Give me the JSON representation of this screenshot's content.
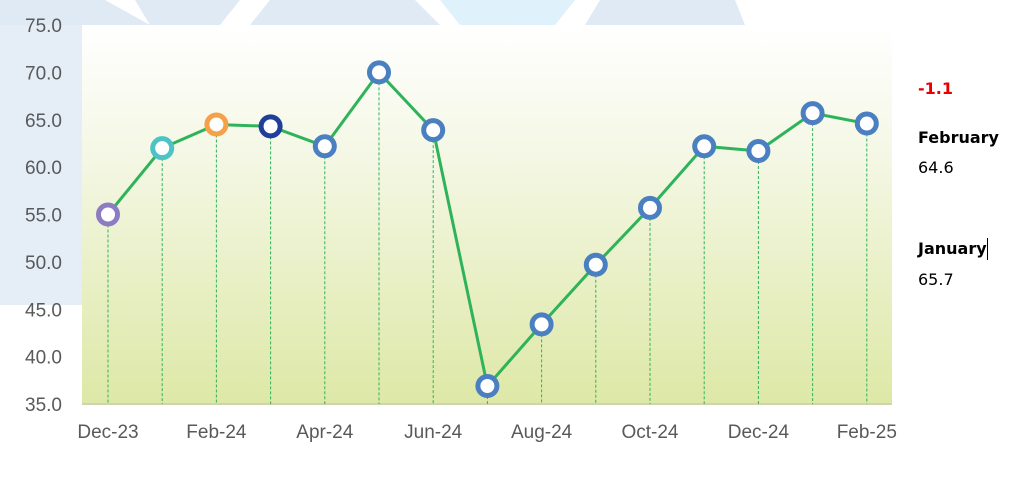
{
  "chart_data": {
    "type": "line",
    "x": [
      "Dec-23",
      "Jan-24",
      "Feb-24",
      "Mar-24",
      "Apr-24",
      "May-24",
      "Jun-24",
      "Jul-24",
      "Aug-24",
      "Sep-24",
      "Oct-24",
      "Nov-24",
      "Dec-24",
      "Jan-25",
      "Feb-25"
    ],
    "x_tick_labels": [
      "Dec-23",
      "Feb-24",
      "Apr-24",
      "Jun-24",
      "Aug-24",
      "Oct-24",
      "Dec-24",
      "Feb-25"
    ],
    "values": [
      55.0,
      62.0,
      64.5,
      64.3,
      62.2,
      70.0,
      63.9,
      36.9,
      43.4,
      49.7,
      55.7,
      62.2,
      61.7,
      65.7,
      64.6
    ],
    "ylim": [
      35.0,
      75.0
    ],
    "y_ticks": [
      "35.0",
      "40.0",
      "45.0",
      "50.0",
      "55.0",
      "60.0",
      "65.0",
      "70.0",
      "75.0"
    ],
    "line_color": "#2fb35a",
    "drop_line_color": "#2fb35a",
    "marker_colors": [
      "#8e7cc3",
      "#4dc3c6",
      "#f5a04a",
      "#1f3f9a",
      "#4a7fc1",
      "#4a7fc1",
      "#4a7fc1",
      "#4a7fc1",
      "#4a7fc1",
      "#4a7fc1",
      "#4a7fc1",
      "#4a7fc1",
      "#4a7fc1",
      "#4a7fc1",
      "#4a7fc1"
    ],
    "grid": false,
    "title": "",
    "xlabel": "",
    "ylabel": ""
  },
  "side_panel": {
    "change": "-1.1",
    "change_color": "#e60000",
    "current_label": "February",
    "current_value": "64.6",
    "previous_label": "January",
    "previous_value": "65.7"
  }
}
